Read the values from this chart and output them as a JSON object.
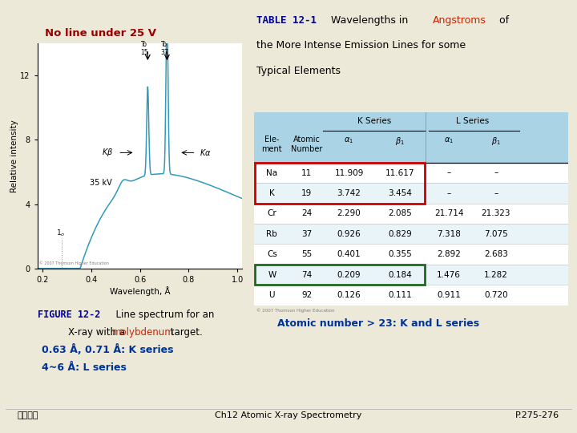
{
  "bg_color": "#ece9d8",
  "title_text": "No line under 25 V",
  "title_color": "#990000",
  "table_header_bg": "#aad4e6",
  "table_outer_border": "#55aacc",
  "table_row_bg_white": "#ffffff",
  "table_row_bg_stripe": "#e8f4f8",
  "red_box_color": "#cc0000",
  "green_box_color": "#226622",
  "rows": [
    [
      "Na",
      "11",
      "11.909",
      "11.617",
      "–",
      "–"
    ],
    [
      "K",
      "19",
      "3.742",
      "3.454",
      "–",
      "–"
    ],
    [
      "Cr",
      "24",
      "2.290",
      "2.085",
      "21.714",
      "21.323"
    ],
    [
      "Rb",
      "37",
      "0.926",
      "0.829",
      "7.318",
      "7.075"
    ],
    [
      "Cs",
      "55",
      "0.401",
      "0.355",
      "2.892",
      "2.683"
    ],
    [
      "W",
      "74",
      "0.209",
      "0.184",
      "1.476",
      "1.282"
    ],
    [
      "U",
      "92",
      "0.126",
      "0.111",
      "0.911",
      "0.720"
    ]
  ],
  "figure_caption_bold": "FIGURE 12-2",
  "figure_caption_rest1": "  Line spectrum for an",
  "figure_caption_rest2": "    X-ray with a ",
  "figure_caption_moly": "molybdenum",
  "figure_caption_moly_color": "#cc2200",
  "figure_caption_end": " target.",
  "atomic_note": "Atomic number > 23: K and L series",
  "atomic_note_color": "#003399",
  "series_note_1": "0.63 Å, 0.71 Å: K series",
  "series_note_2": "4~6 Å: L series",
  "series_note_color": "#003399",
  "footer_left": "歐亞書局",
  "footer_center": "Ch12 Atomic X-ray Spectrometry",
  "footer_right": "P.275-276",
  "spectrum_line_color": "#3399bb",
  "spectrum_bg": "#ffffff",
  "table_title_color_bold": "#000099",
  "table_title_angstroms_color": "#cc2200",
  "angstroms_word": "Angstroms"
}
